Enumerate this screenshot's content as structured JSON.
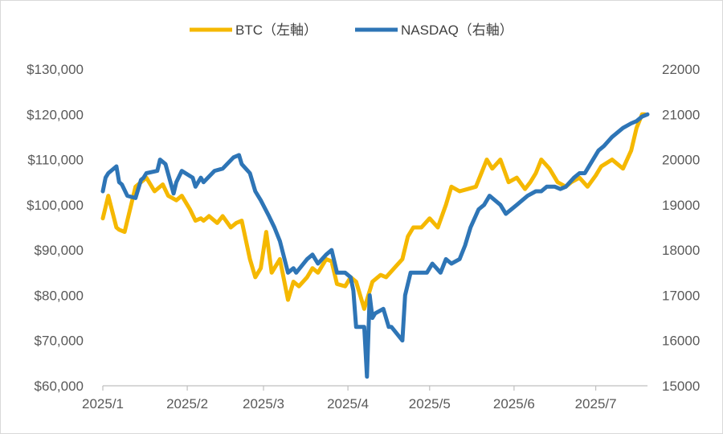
{
  "colors": {
    "btc": "#F5B800",
    "nasdaq": "#2E75B6",
    "axis": "#BFBFBF",
    "text": "#595959"
  },
  "chart_data": {
    "type": "line",
    "title": "",
    "legend_position": "top-center",
    "grid": false,
    "x_tick_labels": [
      "2025/1",
      "2025/2",
      "2025/3",
      "2025/4",
      "2025/5",
      "2025/6",
      "2025/7"
    ],
    "left_axis": {
      "ylim": [
        60000,
        130000
      ],
      "tick_values": [
        60000,
        70000,
        80000,
        90000,
        100000,
        110000,
        120000,
        130000
      ],
      "tick_labels": [
        "$60,000",
        "$70,000",
        "$80,000",
        "$90,000",
        "$100,000",
        "$110,000",
        "$120,000",
        "$130,000"
      ]
    },
    "right_axis": {
      "ylim": [
        15000,
        22000
      ],
      "tick_values": [
        15000,
        16000,
        17000,
        18000,
        19000,
        20000,
        21000,
        22000
      ],
      "tick_labels": [
        "15000",
        "16000",
        "17000",
        "18000",
        "19000",
        "20000",
        "21000",
        "22000"
      ]
    },
    "x_range": [
      "2025-01-01",
      "2025-07-20"
    ],
    "series": [
      {
        "name": "BTC（左軸）",
        "axis": "left",
        "color": "#F5B800",
        "x": [
          "2025-01-01",
          "2025-01-03",
          "2025-01-06",
          "2025-01-07",
          "2025-01-09",
          "2025-01-13",
          "2025-01-15",
          "2025-01-17",
          "2025-01-20",
          "2025-01-23",
          "2025-01-25",
          "2025-01-28",
          "2025-01-30",
          "2025-02-02",
          "2025-02-04",
          "2025-02-06",
          "2025-02-07",
          "2025-02-09",
          "2025-02-12",
          "2025-02-14",
          "2025-02-17",
          "2025-02-19",
          "2025-02-21",
          "2025-02-24",
          "2025-02-26",
          "2025-02-28",
          "2025-03-02",
          "2025-03-04",
          "2025-03-07",
          "2025-03-10",
          "2025-03-12",
          "2025-03-14",
          "2025-03-17",
          "2025-03-19",
          "2025-03-21",
          "2025-03-24",
          "2025-03-26",
          "2025-03-28",
          "2025-03-31",
          "2025-04-02",
          "2025-04-04",
          "2025-04-07",
          "2025-04-09",
          "2025-04-10",
          "2025-04-13",
          "2025-04-15",
          "2025-04-18",
          "2025-04-21",
          "2025-04-23",
          "2025-04-25",
          "2025-04-28",
          "2025-05-01",
          "2025-05-04",
          "2025-05-07",
          "2025-05-09",
          "2025-05-12",
          "2025-05-15",
          "2025-05-18",
          "2025-05-20",
          "2025-05-22",
          "2025-05-24",
          "2025-05-27",
          "2025-05-30",
          "2025-06-02",
          "2025-06-05",
          "2025-06-07",
          "2025-06-09",
          "2025-06-11",
          "2025-06-14",
          "2025-06-17",
          "2025-06-20",
          "2025-06-22",
          "2025-06-25",
          "2025-06-28",
          "2025-07-01",
          "2025-07-03",
          "2025-07-07",
          "2025-07-09",
          "2025-07-11",
          "2025-07-14",
          "2025-07-16",
          "2025-07-18",
          "2025-07-19"
        ],
        "values": [
          97000,
          102000,
          95000,
          94500,
          94000,
          104000,
          105000,
          106000,
          103000,
          104500,
          102000,
          101000,
          102000,
          99000,
          96500,
          97000,
          96500,
          97500,
          96000,
          97500,
          95000,
          96000,
          96500,
          88000,
          84000,
          86000,
          94000,
          85000,
          88000,
          79000,
          83000,
          82000,
          84000,
          86000,
          85000,
          88000,
          87500,
          82500,
          82000,
          84000,
          83000,
          77000,
          81000,
          83000,
          84500,
          84000,
          86000,
          88000,
          93000,
          95000,
          95000,
          97000,
          95000,
          100000,
          104000,
          103000,
          103500,
          104000,
          107000,
          110000,
          108000,
          110000,
          105000,
          106000,
          103500,
          105000,
          107000,
          110000,
          108000,
          105000,
          104000,
          105000,
          106000,
          104000,
          106500,
          108500,
          110000,
          109000,
          108000,
          112000,
          117000,
          120000,
          120000
        ]
      },
      {
        "name": "NASDAQ（右軸）",
        "axis": "right",
        "color": "#2E75B6",
        "x": [
          "2025-01-01",
          "2025-01-02",
          "2025-01-03",
          "2025-01-06",
          "2025-01-07",
          "2025-01-08",
          "2025-01-10",
          "2025-01-13",
          "2025-01-15",
          "2025-01-16",
          "2025-01-17",
          "2025-01-21",
          "2025-01-22",
          "2025-01-24",
          "2025-01-27",
          "2025-01-28",
          "2025-01-30",
          "2025-02-03",
          "2025-02-04",
          "2025-02-06",
          "2025-02-07",
          "2025-02-11",
          "2025-02-14",
          "2025-02-18",
          "2025-02-20",
          "2025-02-21",
          "2025-02-24",
          "2025-02-26",
          "2025-02-28",
          "2025-03-03",
          "2025-03-05",
          "2025-03-07",
          "2025-03-10",
          "2025-03-12",
          "2025-03-13",
          "2025-03-17",
          "2025-03-19",
          "2025-03-21",
          "2025-03-24",
          "2025-03-26",
          "2025-03-28",
          "2025-03-31",
          "2025-04-02",
          "2025-04-03",
          "2025-04-04",
          "2025-04-07",
          "2025-04-08",
          "2025-04-09",
          "2025-04-10",
          "2025-04-11",
          "2025-04-14",
          "2025-04-16",
          "2025-04-17",
          "2025-04-21",
          "2025-04-22",
          "2025-04-24",
          "2025-04-28",
          "2025-04-30",
          "2025-05-02",
          "2025-05-05",
          "2025-05-07",
          "2025-05-09",
          "2025-05-12",
          "2025-05-14",
          "2025-05-16",
          "2025-05-19",
          "2025-05-21",
          "2025-05-23",
          "2025-05-27",
          "2025-05-29",
          "2025-06-02",
          "2025-06-04",
          "2025-06-06",
          "2025-06-09",
          "2025-06-11",
          "2025-06-13",
          "2025-06-16",
          "2025-06-18",
          "2025-06-20",
          "2025-06-23",
          "2025-06-25",
          "2025-06-27",
          "2025-06-30",
          "2025-07-02",
          "2025-07-04",
          "2025-07-07",
          "2025-07-09",
          "2025-07-11",
          "2025-07-14",
          "2025-07-16",
          "2025-07-18",
          "2025-07-20"
        ],
        "values": [
          19300,
          19600,
          19700,
          19850,
          19500,
          19450,
          19200,
          19150,
          19550,
          19600,
          19700,
          19750,
          20000,
          19900,
          19250,
          19500,
          19750,
          19600,
          19400,
          19600,
          19500,
          19750,
          19800,
          20050,
          20100,
          19900,
          19700,
          19300,
          19100,
          18750,
          18500,
          18200,
          17500,
          17600,
          17500,
          17800,
          17900,
          17700,
          17900,
          18000,
          17500,
          17500,
          17400,
          17100,
          16300,
          16300,
          15200,
          17000,
          16500,
          16600,
          16700,
          16300,
          16300,
          16000,
          17000,
          17500,
          17500,
          17500,
          17700,
          17500,
          17800,
          17700,
          17800,
          18100,
          18500,
          18900,
          19000,
          19200,
          19000,
          18800,
          19000,
          19100,
          19200,
          19300,
          19300,
          19400,
          19400,
          19350,
          19400,
          19600,
          19700,
          19700,
          20000,
          20200,
          20300,
          20500,
          20600,
          20700,
          20800,
          20850,
          20950,
          21000
        ]
      }
    ]
  }
}
